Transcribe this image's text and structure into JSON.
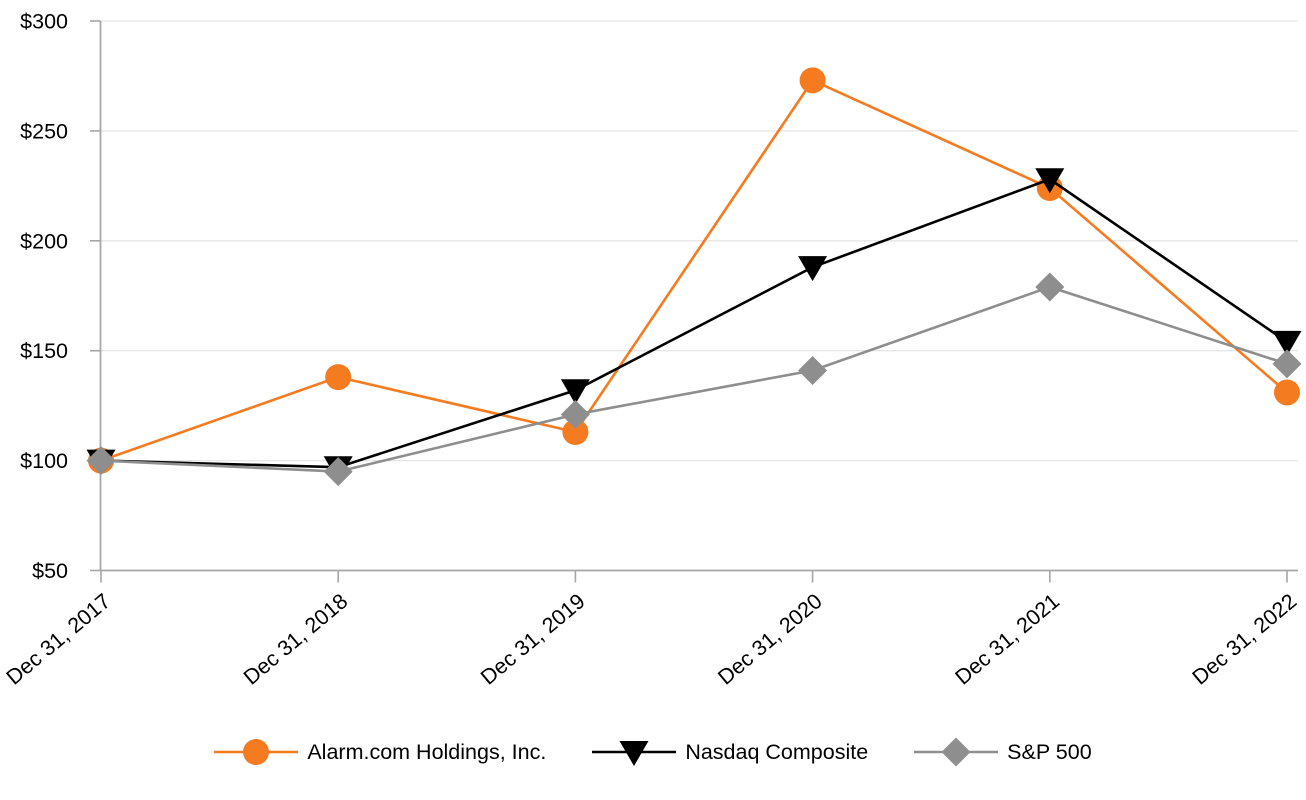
{
  "chart": {
    "background_color": "#FFFFFF",
    "axis_color": "#A6A6A6",
    "grid_color": "#E6E6E6",
    "text_color": "#000000"
  },
  "chart_data": {
    "type": "line",
    "title": "",
    "xlabel": "",
    "ylabel": "",
    "categories": [
      "Dec 31, 2017",
      "Dec 31, 2018",
      "Dec 31, 2019",
      "Dec 31, 2020",
      "Dec 31, 2021",
      "Dec 31, 2022"
    ],
    "series": [
      {
        "name": "Alarm.com Holdings, Inc.",
        "color": "#F57B20",
        "marker": "circle",
        "values": [
          100,
          138,
          113,
          273,
          224,
          131
        ]
      },
      {
        "name": "Nasdaq Composite",
        "color": "#000000",
        "marker": "triangle-down",
        "values": [
          100,
          97,
          132,
          188,
          228,
          154
        ]
      },
      {
        "name": "S&P 500",
        "color": "#8E8E8E",
        "marker": "diamond",
        "values": [
          100,
          95,
          121,
          141,
          179,
          144
        ]
      }
    ],
    "ylim": [
      50,
      300
    ],
    "y_tick_step": 50,
    "y_tick_labels": [
      "$50",
      "$100",
      "$150",
      "$200",
      "$250",
      "$300"
    ],
    "grid": true,
    "legend_position": "bottom",
    "x_label_rotation_deg": -40
  }
}
